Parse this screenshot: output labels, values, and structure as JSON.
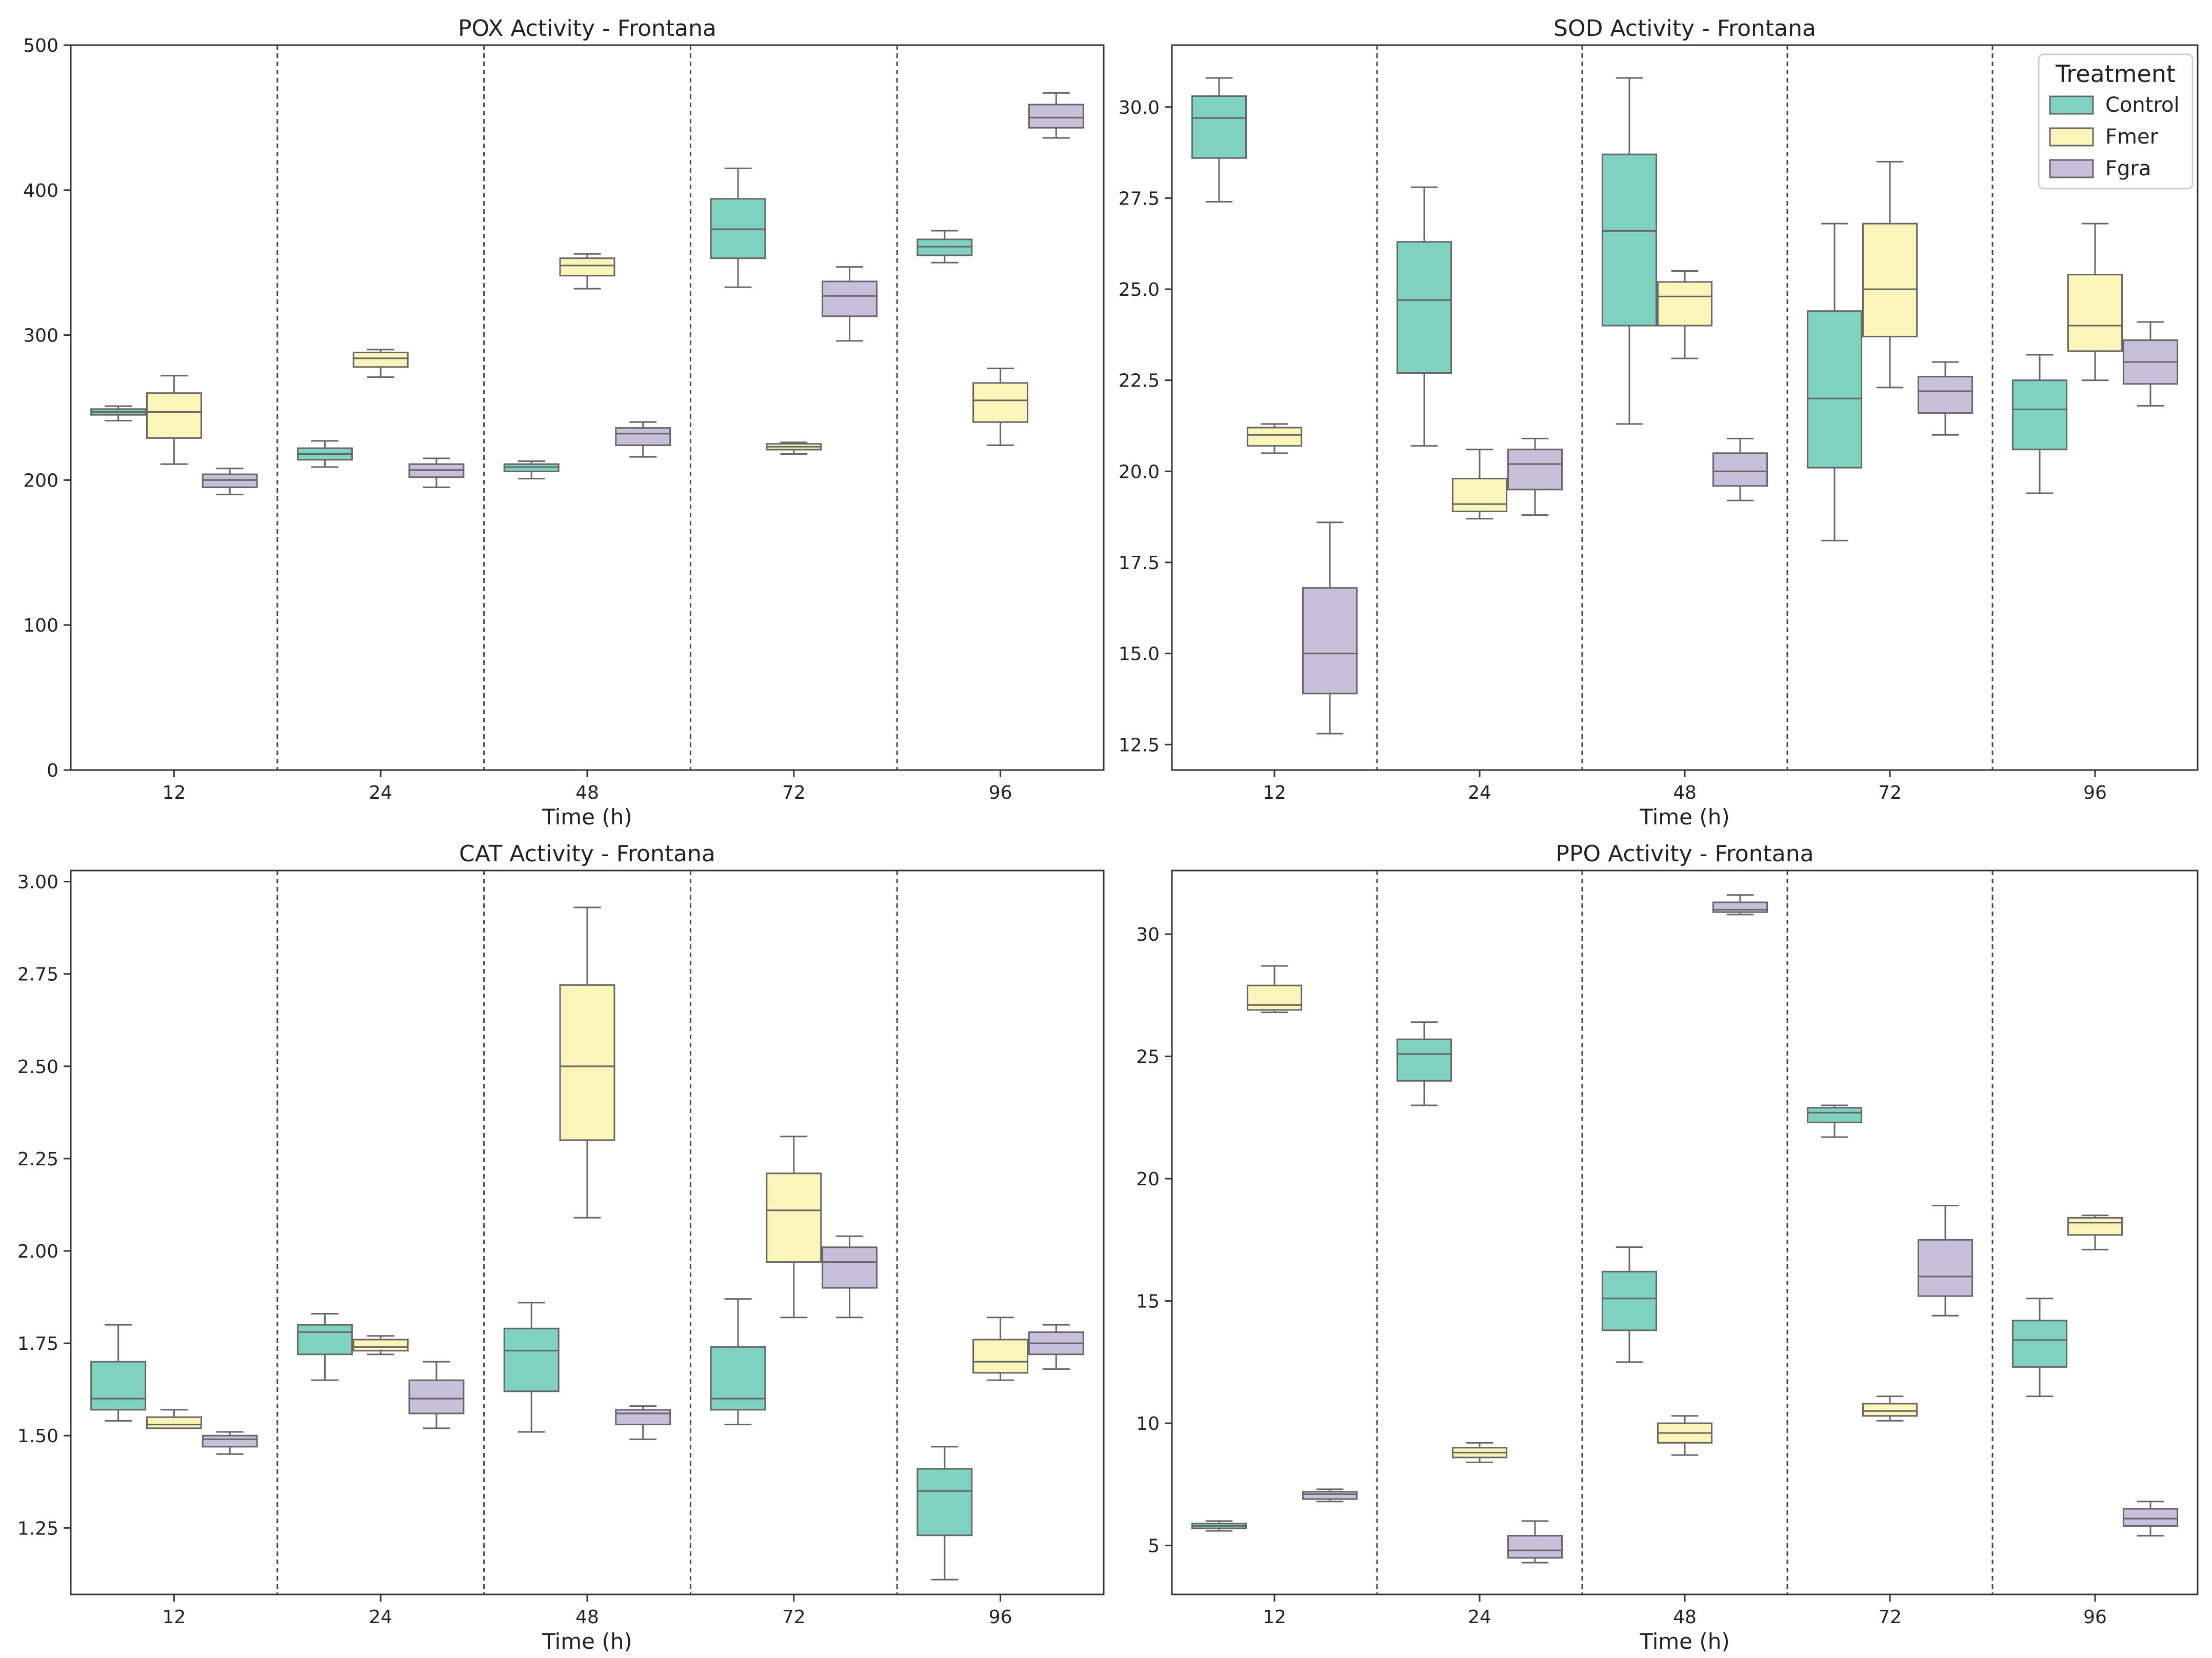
{
  "colors": {
    "Control": "#7fd1c0",
    "Fmer": "#fbf5b9",
    "Fgra": "#c6c0db",
    "box_edge": "#666666",
    "separator": "#444444"
  },
  "chart_data": [
    {
      "type": "box",
      "title": "POX Activity - Frontana",
      "xlabel": "Time (h)",
      "ylabel": "",
      "categories": [
        "12",
        "24",
        "48",
        "72",
        "96"
      ],
      "ylim": [
        0,
        500
      ],
      "yticks": [
        0,
        100,
        200,
        300,
        400,
        500
      ],
      "ytick_labels": [
        "0",
        "100",
        "200",
        "300",
        "400",
        "500"
      ],
      "series": [
        {
          "name": "Control",
          "boxes": [
            {
              "min": 241,
              "q1": 245,
              "median": 247,
              "q3": 249,
              "max": 251
            },
            {
              "min": 209,
              "q1": 214,
              "median": 218,
              "q3": 222,
              "max": 227
            },
            {
              "min": 201,
              "q1": 206,
              "median": 209,
              "q3": 211,
              "max": 213
            },
            {
              "min": 333,
              "q1": 353,
              "median": 373,
              "q3": 394,
              "max": 415
            },
            {
              "min": 350,
              "q1": 355,
              "median": 361,
              "q3": 366,
              "max": 372
            }
          ]
        },
        {
          "name": "Fmer",
          "boxes": [
            {
              "min": 211,
              "q1": 229,
              "median": 247,
              "q3": 260,
              "max": 272
            },
            {
              "min": 271,
              "q1": 278,
              "median": 284,
              "q3": 288,
              "max": 290
            },
            {
              "min": 332,
              "q1": 341,
              "median": 348,
              "q3": 353,
              "max": 356
            },
            {
              "min": 218,
              "q1": 221,
              "median": 223,
              "q3": 225,
              "max": 226
            },
            {
              "min": 224,
              "q1": 240,
              "median": 255,
              "q3": 267,
              "max": 277
            }
          ]
        },
        {
          "name": "Fgra",
          "boxes": [
            {
              "min": 190,
              "q1": 195,
              "median": 200,
              "q3": 204,
              "max": 208
            },
            {
              "min": 195,
              "q1": 202,
              "median": 207,
              "q3": 211,
              "max": 215
            },
            {
              "min": 216,
              "q1": 224,
              "median": 232,
              "q3": 236,
              "max": 240
            },
            {
              "min": 296,
              "q1": 313,
              "median": 327,
              "q3": 337,
              "max": 347
            },
            {
              "min": 436,
              "q1": 443,
              "median": 450,
              "q3": 459,
              "max": 467
            }
          ]
        }
      ]
    },
    {
      "type": "box",
      "title": "SOD Activity - Frontana",
      "xlabel": "Time (h)",
      "ylabel": "",
      "categories": [
        "12",
        "24",
        "48",
        "72",
        "96"
      ],
      "ylim": [
        11.8,
        31.7
      ],
      "yticks": [
        12.5,
        15.0,
        17.5,
        20.0,
        22.5,
        25.0,
        27.5,
        30.0
      ],
      "ytick_labels": [
        "12.5",
        "15.0",
        "17.5",
        "20.0",
        "22.5",
        "25.0",
        "27.5",
        "30.0"
      ],
      "series": [
        {
          "name": "Control",
          "boxes": [
            {
              "min": 27.4,
              "q1": 28.6,
              "median": 29.7,
              "q3": 30.3,
              "max": 30.8
            },
            {
              "min": 20.7,
              "q1": 22.7,
              "median": 24.7,
              "q3": 26.3,
              "max": 27.8
            },
            {
              "min": 21.3,
              "q1": 24.0,
              "median": 26.6,
              "q3": 28.7,
              "max": 30.8
            },
            {
              "min": 18.1,
              "q1": 20.1,
              "median": 22.0,
              "q3": 24.4,
              "max": 26.8
            },
            {
              "min": 19.4,
              "q1": 20.6,
              "median": 21.7,
              "q3": 22.5,
              "max": 23.2
            }
          ]
        },
        {
          "name": "Fmer",
          "boxes": [
            {
              "min": 20.5,
              "q1": 20.7,
              "median": 21.0,
              "q3": 21.2,
              "max": 21.3
            },
            {
              "min": 18.7,
              "q1": 18.9,
              "median": 19.1,
              "q3": 19.8,
              "max": 20.6
            },
            {
              "min": 23.1,
              "q1": 24.0,
              "median": 24.8,
              "q3": 25.2,
              "max": 25.5
            },
            {
              "min": 22.3,
              "q1": 23.7,
              "median": 25.0,
              "q3": 26.8,
              "max": 28.5
            },
            {
              "min": 22.5,
              "q1": 23.3,
              "median": 24.0,
              "q3": 25.4,
              "max": 26.8
            }
          ]
        },
        {
          "name": "Fgra",
          "boxes": [
            {
              "min": 12.8,
              "q1": 13.9,
              "median": 15.0,
              "q3": 16.8,
              "max": 18.6
            },
            {
              "min": 18.8,
              "q1": 19.5,
              "median": 20.2,
              "q3": 20.6,
              "max": 20.9
            },
            {
              "min": 19.2,
              "q1": 19.6,
              "median": 20.0,
              "q3": 20.5,
              "max": 20.9
            },
            {
              "min": 21.0,
              "q1": 21.6,
              "median": 22.2,
              "q3": 22.6,
              "max": 23.0
            },
            {
              "min": 21.8,
              "q1": 22.4,
              "median": 23.0,
              "q3": 23.6,
              "max": 24.1
            }
          ]
        }
      ],
      "legend": {
        "title": "Treatment",
        "position": "top-right",
        "entries": [
          "Control",
          "Fmer",
          "Fgra"
        ]
      }
    },
    {
      "type": "box",
      "title": "CAT Activity - Frontana",
      "xlabel": "Time (h)",
      "ylabel": "",
      "categories": [
        "12",
        "24",
        "48",
        "72",
        "96"
      ],
      "ylim": [
        1.07,
        3.03
      ],
      "yticks": [
        1.25,
        1.5,
        1.75,
        2.0,
        2.25,
        2.5,
        2.75,
        3.0
      ],
      "ytick_labels": [
        "1.25",
        "1.50",
        "1.75",
        "2.00",
        "2.25",
        "2.50",
        "2.75",
        "3.00"
      ],
      "series": [
        {
          "name": "Control",
          "boxes": [
            {
              "min": 1.54,
              "q1": 1.57,
              "median": 1.6,
              "q3": 1.7,
              "max": 1.8
            },
            {
              "min": 1.65,
              "q1": 1.72,
              "median": 1.78,
              "q3": 1.8,
              "max": 1.83
            },
            {
              "min": 1.51,
              "q1": 1.62,
              "median": 1.73,
              "q3": 1.79,
              "max": 1.86
            },
            {
              "min": 1.53,
              "q1": 1.57,
              "median": 1.6,
              "q3": 1.74,
              "max": 1.87
            },
            {
              "min": 1.11,
              "q1": 1.23,
              "median": 1.35,
              "q3": 1.41,
              "max": 1.47
            }
          ]
        },
        {
          "name": "Fmer",
          "boxes": [
            {
              "min": 1.52,
              "q1": 1.52,
              "median": 1.53,
              "q3": 1.55,
              "max": 1.57
            },
            {
              "min": 1.72,
              "q1": 1.73,
              "median": 1.74,
              "q3": 1.76,
              "max": 1.77
            },
            {
              "min": 2.09,
              "q1": 2.3,
              "median": 2.5,
              "q3": 2.72,
              "max": 2.93
            },
            {
              "min": 1.82,
              "q1": 1.97,
              "median": 2.11,
              "q3": 2.21,
              "max": 2.31
            },
            {
              "min": 1.65,
              "q1": 1.67,
              "median": 1.7,
              "q3": 1.76,
              "max": 1.82
            }
          ]
        },
        {
          "name": "Fgra",
          "boxes": [
            {
              "min": 1.45,
              "q1": 1.47,
              "median": 1.49,
              "q3": 1.5,
              "max": 1.51
            },
            {
              "min": 1.52,
              "q1": 1.56,
              "median": 1.6,
              "q3": 1.65,
              "max": 1.7
            },
            {
              "min": 1.49,
              "q1": 1.53,
              "median": 1.56,
              "q3": 1.57,
              "max": 1.58
            },
            {
              "min": 1.82,
              "q1": 1.9,
              "median": 1.97,
              "q3": 2.01,
              "max": 2.04
            },
            {
              "min": 1.68,
              "q1": 1.72,
              "median": 1.75,
              "q3": 1.78,
              "max": 1.8
            }
          ]
        }
      ]
    },
    {
      "type": "box",
      "title": "PPO Activity - Frontana",
      "xlabel": "Time (h)",
      "ylabel": "",
      "categories": [
        "12",
        "24",
        "48",
        "72",
        "96"
      ],
      "ylim": [
        3.0,
        32.6
      ],
      "yticks": [
        5,
        10,
        15,
        20,
        25,
        30
      ],
      "ytick_labels": [
        "5",
        "10",
        "15",
        "20",
        "25",
        "30"
      ],
      "series": [
        {
          "name": "Control",
          "boxes": [
            {
              "min": 5.6,
              "q1": 5.7,
              "median": 5.8,
              "q3": 5.9,
              "max": 6.0
            },
            {
              "min": 23.0,
              "q1": 24.0,
              "median": 25.1,
              "q3": 25.7,
              "max": 26.4
            },
            {
              "min": 12.5,
              "q1": 13.8,
              "median": 15.1,
              "q3": 16.2,
              "max": 17.2
            },
            {
              "min": 21.7,
              "q1": 22.3,
              "median": 22.7,
              "q3": 22.9,
              "max": 23.0
            },
            {
              "min": 11.1,
              "q1": 12.3,
              "median": 13.4,
              "q3": 14.2,
              "max": 15.1
            }
          ]
        },
        {
          "name": "Fmer",
          "boxes": [
            {
              "min": 26.8,
              "q1": 26.9,
              "median": 27.1,
              "q3": 27.9,
              "max": 28.7
            },
            {
              "min": 8.4,
              "q1": 8.6,
              "median": 8.8,
              "q3": 9.0,
              "max": 9.2
            },
            {
              "min": 8.7,
              "q1": 9.2,
              "median": 9.6,
              "q3": 10.0,
              "max": 10.3
            },
            {
              "min": 10.1,
              "q1": 10.3,
              "median": 10.5,
              "q3": 10.8,
              "max": 11.1
            },
            {
              "min": 17.1,
              "q1": 17.7,
              "median": 18.2,
              "q3": 18.4,
              "max": 18.5
            }
          ]
        },
        {
          "name": "Fgra",
          "boxes": [
            {
              "min": 6.8,
              "q1": 6.9,
              "median": 7.1,
              "q3": 7.2,
              "max": 7.3
            },
            {
              "min": 4.3,
              "q1": 4.5,
              "median": 4.8,
              "q3": 5.4,
              "max": 6.0
            },
            {
              "min": 30.8,
              "q1": 30.9,
              "median": 31.0,
              "q3": 31.3,
              "max": 31.6
            },
            {
              "min": 14.4,
              "q1": 15.2,
              "median": 16.0,
              "q3": 17.5,
              "max": 18.9
            },
            {
              "min": 5.4,
              "q1": 5.8,
              "median": 6.1,
              "q3": 6.5,
              "max": 6.8
            }
          ]
        }
      ]
    }
  ]
}
